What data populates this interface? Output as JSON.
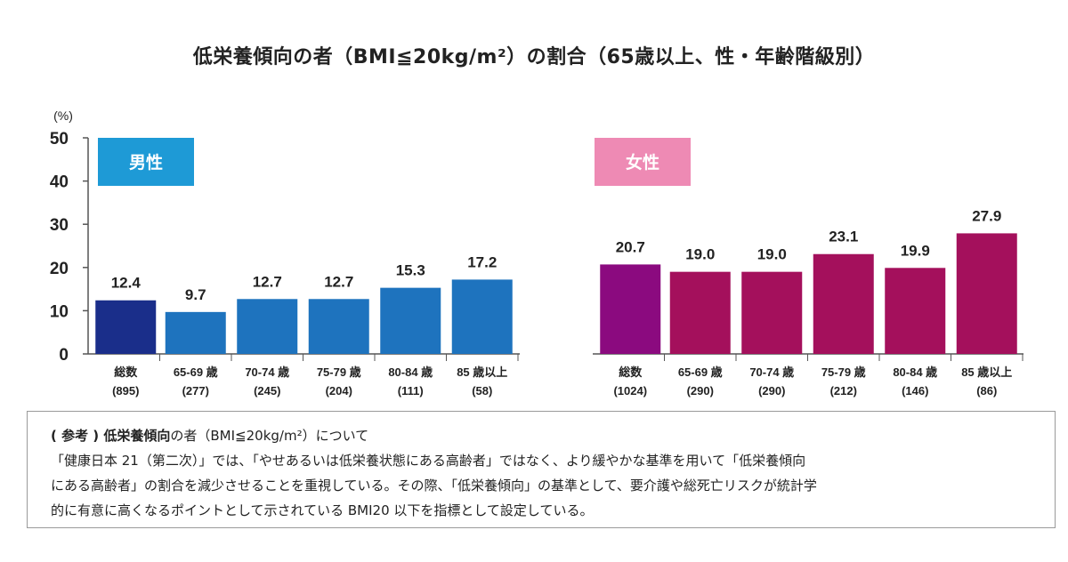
{
  "title": "低栄養傾向の者（BMI≦20kg/m²）の割合（65歳以上、性・年齢階級別）",
  "chart_data": {
    "type": "bar",
    "ylabel": "(%)",
    "ylim": [
      0,
      50
    ],
    "yticks": [
      0,
      10,
      20,
      30,
      40,
      50
    ],
    "grid": false,
    "groups": [
      {
        "name": "男性",
        "label_color": "#1e9ad6",
        "categories": [
          "総数",
          "65-69 歳",
          "70-74 歳",
          "75-79 歳",
          "80-84 歳",
          "85 歳以上"
        ],
        "counts": [
          "(895)",
          "(277)",
          "(245)",
          "(204)",
          "(111)",
          "(58)"
        ],
        "values": [
          12.4,
          9.7,
          12.7,
          12.7,
          15.3,
          17.2
        ],
        "value_labels": [
          "12.4",
          "9.7",
          "12.7",
          "12.7",
          "15.3",
          "17.2"
        ],
        "colors": [
          "#1a2e8a",
          "#1e73be",
          "#1e73be",
          "#1e73be",
          "#1e73be",
          "#1e73be"
        ]
      },
      {
        "name": "女性",
        "label_color": "#ee8ab4",
        "categories": [
          "総数",
          "65-69 歳",
          "70-74 歳",
          "75-79 歳",
          "80-84 歳",
          "85 歳以上"
        ],
        "counts": [
          "(1024)",
          "(290)",
          "(290)",
          "(212)",
          "(146)",
          "(86)"
        ],
        "values": [
          20.7,
          19.0,
          19.0,
          23.1,
          19.9,
          27.9
        ],
        "value_labels": [
          "20.7",
          "19.0",
          "19.0",
          "23.1",
          "19.9",
          "27.9"
        ],
        "colors": [
          "#8b0a7f",
          "#a4105c",
          "#a4105c",
          "#a4105c",
          "#a4105c",
          "#a4105c"
        ]
      }
    ]
  },
  "note": {
    "heading_bold": "( 参考 ) 低栄養傾向",
    "heading_rest": "の者（BMI≦20kg/m²）について",
    "lines": [
      "「健康日本 21（第二次）」では、「やせあるいは低栄養状態にある高齢者」ではなく、より緩やかな基準を用いて「低栄養傾向",
      "にある高齢者」の割合を減少させることを重視している。その際、「低栄養傾向」の基準として、要介護や総死亡リスクが統計学",
      "的に有意に高くなるポイントとして示されている BMI20 以下を指標として設定している。"
    ]
  }
}
